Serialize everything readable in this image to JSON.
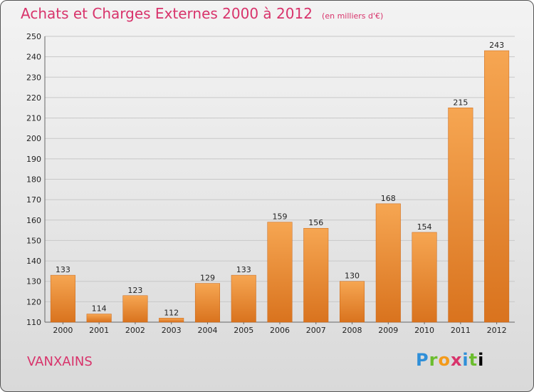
{
  "title": "Achats et Charges Externes 2000 à 2012",
  "unit_note": "(en milliers d'€)",
  "commune": "VANXAINS",
  "logo": {
    "letters": [
      "P",
      "r",
      "o",
      "x",
      "i",
      "t",
      "i"
    ]
  },
  "colors": {
    "bar_top": "#f6a652",
    "bar_bottom": "#d9731e",
    "accent": "#d8336b",
    "grid": "#c8c8c8"
  },
  "chart_data": {
    "type": "bar",
    "title": "Achats et Charges Externes 2000 à 2012",
    "subtitle": "(en milliers d'€)",
    "xlabel": "",
    "ylabel": "",
    "categories": [
      "2000",
      "2001",
      "2002",
      "2003",
      "2004",
      "2005",
      "2006",
      "2007",
      "2008",
      "2009",
      "2010",
      "2011",
      "2012"
    ],
    "values": [
      133,
      114,
      123,
      112,
      129,
      133,
      159,
      156,
      130,
      168,
      154,
      215,
      243
    ],
    "ylim": [
      110,
      250
    ],
    "yticks": [
      110,
      120,
      130,
      140,
      150,
      160,
      170,
      180,
      190,
      200,
      210,
      220,
      230,
      240,
      250
    ],
    "grid": true,
    "legend": "none"
  }
}
